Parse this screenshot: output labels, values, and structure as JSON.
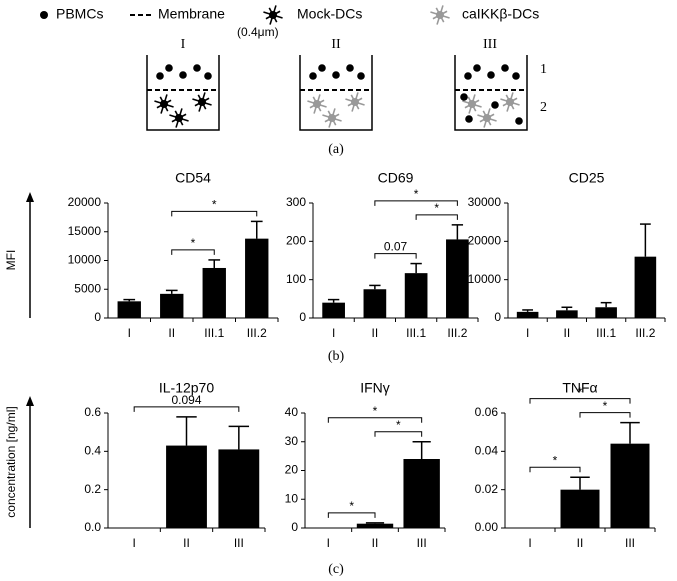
{
  "legend": {
    "pbmcs": "PBMCs",
    "membrane": "Membrane",
    "pore_size": "(0.4μm)",
    "mock": "Mock-DCs",
    "caikk": "caIKKβ-DCs"
  },
  "diagram": {
    "conditions": [
      "I",
      "II",
      "III"
    ],
    "compartments": [
      "1",
      "2"
    ]
  },
  "panel_labels": [
    "(a)",
    "(b)",
    "(c)"
  ],
  "axis_labels": [
    "MFI",
    "concentration [ng/ml]"
  ],
  "chart_data": [
    {
      "type": "bar",
      "title": "CD54",
      "categories": [
        "I",
        "II",
        "III.1",
        "III.2"
      ],
      "values": [
        2900,
        4200,
        8700,
        13800
      ],
      "errors": [
        300,
        600,
        1400,
        3000
      ],
      "ylim": [
        0,
        20000
      ],
      "yticks": [
        0,
        5000,
        10000,
        15000,
        20000
      ],
      "color": "#000000",
      "annotations": [
        {
          "between": [
            "II",
            "III.1"
          ],
          "label": "*"
        },
        {
          "between": [
            "II",
            "III.2"
          ],
          "label": "*"
        }
      ]
    },
    {
      "type": "bar",
      "title": "CD69",
      "categories": [
        "I",
        "II",
        "III.1",
        "III.2"
      ],
      "values": [
        40,
        75,
        117,
        205
      ],
      "errors": [
        8,
        10,
        25,
        38
      ],
      "ylim": [
        0,
        300
      ],
      "yticks": [
        0,
        100,
        200,
        300
      ],
      "color": "#000000",
      "annotations": [
        {
          "between": [
            "II",
            "III.1"
          ],
          "label": "0.07"
        },
        {
          "between": [
            "III.1",
            "III.2"
          ],
          "label": "*"
        },
        {
          "between": [
            "II",
            "III.2"
          ],
          "label": "*"
        }
      ]
    },
    {
      "type": "bar",
      "title": "CD25",
      "categories": [
        "I",
        "II",
        "III.1",
        "III.2"
      ],
      "values": [
        1600,
        2000,
        2800,
        16000
      ],
      "errors": [
        500,
        800,
        1200,
        8500
      ],
      "ylim": [
        0,
        30000
      ],
      "yticks": [
        0,
        10000,
        20000,
        30000
      ],
      "color": "#000000",
      "annotations": []
    },
    {
      "type": "bar",
      "title": "IL-12p70",
      "categories": [
        "I",
        "II",
        "III"
      ],
      "values": [
        0,
        0.43,
        0.41
      ],
      "errors": [
        0,
        0.15,
        0.12
      ],
      "ylim": [
        0,
        0.6
      ],
      "yticks": [
        {
          "value": 0,
          "label": "0.0"
        },
        0.2,
        0.4,
        0.6
      ],
      "color": "#000000",
      "annotations": [
        {
          "between": [
            "I",
            "III"
          ],
          "label": "0.094"
        }
      ]
    },
    {
      "type": "bar",
      "title": "IFNγ",
      "categories": [
        "I",
        "II",
        "III"
      ],
      "values": [
        0,
        1.5,
        24
      ],
      "errors": [
        0,
        0.3,
        6
      ],
      "ylim": [
        0,
        40
      ],
      "yticks": [
        0,
        10,
        20,
        30,
        40
      ],
      "color": "#000000",
      "annotations": [
        {
          "between": [
            "I",
            "II"
          ],
          "label": "*"
        },
        {
          "between": [
            "II",
            "III"
          ],
          "label": "*"
        },
        {
          "between": [
            "I",
            "III"
          ],
          "label": "*"
        }
      ]
    },
    {
      "type": "bar",
      "title": "TNFα",
      "categories": [
        "I",
        "II",
        "III"
      ],
      "values": [
        0,
        0.02,
        0.044
      ],
      "errors": [
        0,
        0.0065,
        0.011
      ],
      "ylim": [
        0,
        0.06
      ],
      "yticks": [
        {
          "value": 0,
          "label": "0.00"
        },
        0.02,
        0.04,
        0.06
      ],
      "color": "#000000",
      "annotations": [
        {
          "between": [
            "I",
            "II"
          ],
          "label": "*"
        },
        {
          "between": [
            "II",
            "III"
          ],
          "label": "*"
        },
        {
          "between": [
            "I",
            "III"
          ],
          "label": "*"
        }
      ]
    }
  ]
}
